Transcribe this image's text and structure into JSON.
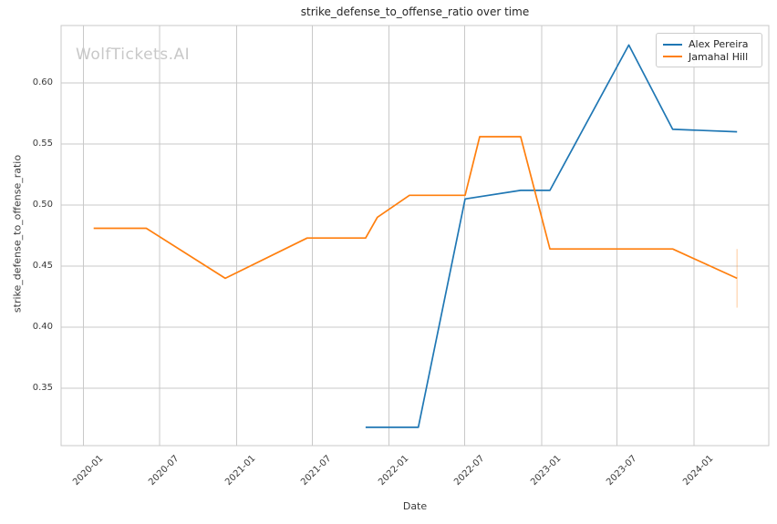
{
  "title": "strike_defense_to_offense_ratio over time",
  "watermark": "WolfTickets.AI",
  "chart_data": {
    "type": "line",
    "title": "strike_defense_to_offense_ratio over time",
    "xlabel": "Date",
    "ylabel": "strike_defense_to_offense_ratio",
    "grid": true,
    "legend_position": "upper right",
    "xlim": [
      "2019-11-08",
      "2024-06-28"
    ],
    "ylim": [
      0.303,
      0.647
    ],
    "x_tick_labels": [
      "2020-01",
      "2020-07",
      "2021-01",
      "2021-07",
      "2022-01",
      "2022-07",
      "2023-01",
      "2023-07",
      "2024-01"
    ],
    "y_tick_labels": [
      "0.35",
      "0.40",
      "0.45",
      "0.50",
      "0.55",
      "0.60"
    ],
    "y_tick_values": [
      0.35,
      0.4,
      0.45,
      0.5,
      0.55,
      0.6
    ],
    "series": [
      {
        "name": "Alex Pereira",
        "color": "#1f77b4",
        "x": [
          "2021-11-06",
          "2022-03-12",
          "2022-07-02",
          "2022-11-12",
          "2023-01-21",
          "2023-07-29",
          "2023-11-11",
          "2024-04-13"
        ],
        "y": [
          0.318,
          0.318,
          0.505,
          0.512,
          0.512,
          0.631,
          0.562,
          0.56
        ]
      },
      {
        "name": "Jamahal Hill",
        "color": "#ff7f0e",
        "x": [
          "2020-01-25",
          "2020-05-30",
          "2020-12-05",
          "2021-06-19",
          "2021-11-06",
          "2021-12-04",
          "2022-02-19",
          "2022-07-02",
          "2022-08-06",
          "2022-11-12",
          "2023-01-21",
          "2023-11-11",
          "2024-04-13"
        ],
        "y": [
          0.481,
          0.481,
          0.44,
          0.473,
          0.473,
          0.49,
          0.508,
          0.508,
          0.556,
          0.556,
          0.464,
          0.464,
          0.44
        ],
        "error_bar": {
          "x": "2024-04-13",
          "y_low": 0.416,
          "y_high": 0.464
        }
      }
    ]
  }
}
